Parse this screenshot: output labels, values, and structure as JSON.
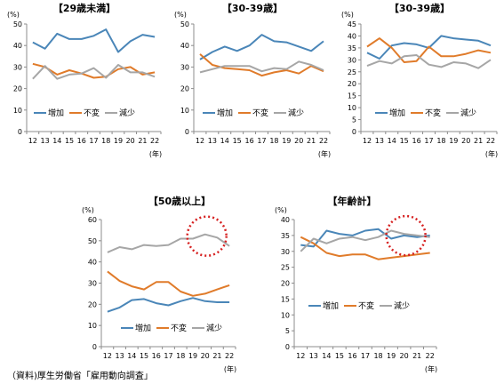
{
  "source_note": "（資料)厚生労働省「雇用動向調査」",
  "colors": {
    "increase": "#4a86b8",
    "unchanged": "#e07b2a",
    "decrease": "#a6a6a6",
    "highlight": "#d62020",
    "axis": "#8c8c8c"
  },
  "chart_data": [
    {
      "type": "line",
      "title": "【29歳未満】",
      "ylabel": "(%)",
      "xlabel": "(年)",
      "ylim": [
        0,
        50
      ],
      "yticks": [
        0,
        10,
        20,
        30,
        40,
        50
      ],
      "x": [
        "12",
        "13",
        "14",
        "15",
        "16",
        "17",
        "18",
        "19",
        "20",
        "21",
        "22"
      ],
      "series": [
        {
          "name": "増加",
          "key": "increase",
          "values": [
            41.5,
            38.5,
            45.5,
            43,
            43,
            44.5,
            47.5,
            37,
            42,
            45,
            44
          ]
        },
        {
          "name": "不変",
          "key": "unchanged",
          "values": [
            31.5,
            30,
            26.5,
            28.5,
            27,
            25,
            25.5,
            29,
            30,
            26.5,
            27.5
          ]
        },
        {
          "name": "減少",
          "key": "decrease",
          "values": [
            24.5,
            30.5,
            24.5,
            26.5,
            27,
            29.5,
            25,
            31,
            27.5,
            27.5,
            25.5
          ]
        }
      ],
      "legend": "bottom",
      "grid": false,
      "highlight": false
    },
    {
      "type": "line",
      "title": "【30-39歳】",
      "ylabel": "(%)",
      "xlabel": "(年)",
      "ylim": [
        0,
        50
      ],
      "yticks": [
        0,
        10,
        20,
        30,
        40,
        50
      ],
      "x": [
        "12",
        "13",
        "14",
        "15",
        "16",
        "17",
        "18",
        "19",
        "20",
        "21",
        "22"
      ],
      "series": [
        {
          "name": "増加",
          "key": "increase",
          "values": [
            33.5,
            37,
            39.5,
            37.5,
            40,
            45,
            42,
            41.5,
            39.5,
            37.5,
            42
          ]
        },
        {
          "name": "不変",
          "key": "unchanged",
          "values": [
            36,
            31,
            29.5,
            29,
            28.5,
            26,
            27.5,
            28.5,
            27,
            30.5,
            28
          ]
        },
        {
          "name": "減少",
          "key": "decrease",
          "values": [
            27.5,
            29,
            30.5,
            30.5,
            30.5,
            28,
            29.5,
            29,
            32.5,
            31,
            28.5
          ]
        }
      ],
      "legend": "bottom",
      "grid": false,
      "highlight": false
    },
    {
      "type": "line",
      "title": "【30-39歳】",
      "ylabel": "(%)",
      "xlabel": "(年)",
      "ylim": [
        0,
        45
      ],
      "yticks": [
        0,
        5,
        10,
        15,
        20,
        25,
        30,
        35,
        40,
        45
      ],
      "x": [
        "12",
        "13",
        "14",
        "15",
        "16",
        "17",
        "18",
        "19",
        "20",
        "21",
        "22"
      ],
      "series": [
        {
          "name": "増加",
          "key": "increase",
          "values": [
            33,
            30.5,
            36,
            37,
            36.5,
            35,
            40,
            39,
            38.5,
            38,
            36
          ]
        },
        {
          "name": "不変",
          "key": "unchanged",
          "values": [
            35.5,
            39,
            35,
            29,
            29.5,
            35.5,
            31.5,
            31.5,
            32.5,
            34,
            33
          ]
        },
        {
          "name": "減少",
          "key": "decrease",
          "values": [
            27.5,
            29.5,
            28.5,
            31.5,
            32,
            28,
            27,
            29,
            28.5,
            26.5,
            30
          ]
        }
      ],
      "legend": "bottom",
      "grid": false,
      "highlight": false
    },
    {
      "type": "line",
      "title": "【50歳以上】",
      "ylabel": "(%)",
      "xlabel": "(年)",
      "ylim": [
        0,
        60
      ],
      "yticks": [
        0,
        10,
        20,
        30,
        40,
        50,
        60
      ],
      "x": [
        "12",
        "13",
        "14",
        "15",
        "16",
        "17",
        "18",
        "19",
        "20",
        "21",
        "22"
      ],
      "series": [
        {
          "name": "増加",
          "key": "increase",
          "values": [
            16.5,
            18.5,
            22,
            22.5,
            20.5,
            19.5,
            21.5,
            23,
            21.5,
            21,
            21
          ]
        },
        {
          "name": "不変",
          "key": "unchanged",
          "values": [
            35.5,
            31,
            28.5,
            27,
            30.5,
            30.5,
            26,
            24,
            25,
            27,
            29
          ]
        },
        {
          "name": "減少",
          "key": "decrease",
          "values": [
            44.5,
            47,
            46,
            48,
            47.5,
            48,
            51,
            51,
            53,
            51.5,
            47.5
          ]
        }
      ],
      "legend": "bottom",
      "grid": false,
      "highlight": true
    },
    {
      "type": "line",
      "title": "【年齢計】",
      "ylabel": "(%)",
      "xlabel": "(年)",
      "ylim": [
        0,
        40
      ],
      "yticks": [
        0,
        5,
        10,
        15,
        20,
        25,
        30,
        35,
        40
      ],
      "x": [
        "12",
        "13",
        "14",
        "15",
        "16",
        "17",
        "18",
        "19",
        "20",
        "21",
        "22"
      ],
      "series": [
        {
          "name": "増加",
          "key": "increase",
          "values": [
            32,
            31.5,
            36.5,
            35.5,
            35,
            36.5,
            37,
            34,
            35,
            34.5,
            35
          ]
        },
        {
          "name": "不変",
          "key": "unchanged",
          "values": [
            34.5,
            32.5,
            29.5,
            28.5,
            29,
            29,
            27.5,
            28,
            28.5,
            29,
            29.5
          ]
        },
        {
          "name": "減少",
          "key": "decrease",
          "values": [
            30,
            34,
            32.5,
            34,
            34.5,
            33.5,
            34.5,
            36.5,
            35.5,
            35,
            34.5
          ]
        }
      ],
      "legend": "bottom",
      "grid": false,
      "highlight": true
    }
  ]
}
